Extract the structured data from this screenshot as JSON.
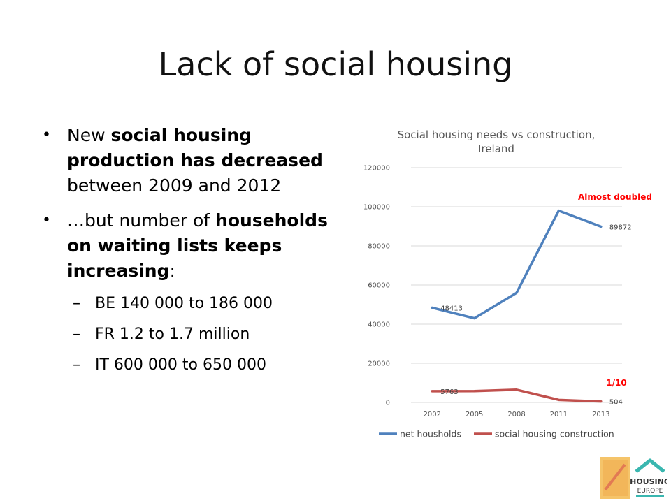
{
  "slide": {
    "title": "Lack of social housing",
    "bullets": [
      {
        "segments": [
          {
            "text": "New ",
            "bold": false
          },
          {
            "text": "social housing production has decreased",
            "bold": true
          },
          {
            "text": " between 2009 and 2012",
            "bold": false
          }
        ]
      },
      {
        "segments": [
          {
            "text": "…but number of ",
            "bold": false
          },
          {
            "text": "households on waiting lists keeps increasing",
            "bold": true
          },
          {
            "text": ":",
            "bold": false
          }
        ]
      }
    ],
    "sub_bullets": [
      "BE 140 000 to 186 000",
      "FR 1.2 to 1.7 million",
      "IT 600 000 to 650 000"
    ]
  },
  "chart_data": {
    "type": "line",
    "title": "Social housing needs vs construction, Ireland",
    "title_lines": [
      "Social housing needs vs construction,",
      "Ireland"
    ],
    "x": [
      "2002",
      "2005",
      "2008",
      "2011",
      "2013"
    ],
    "series": [
      {
        "name": "net housholds",
        "color": "#4f81bd",
        "values": [
          48413,
          43000,
          56000,
          98000,
          89872
        ]
      },
      {
        "name": "social housing construction",
        "color": "#c0504d",
        "values": [
          5763,
          5800,
          6500,
          1300,
          504
        ]
      }
    ],
    "data_labels": [
      {
        "series": 0,
        "index": 0,
        "text": "48413"
      },
      {
        "series": 0,
        "index": 4,
        "text": "89872"
      },
      {
        "series": 1,
        "index": 0,
        "text": "5763"
      },
      {
        "series": 1,
        "index": 4,
        "text": "504"
      }
    ],
    "y_ticks": [
      "0",
      "20000",
      "40000",
      "60000",
      "80000",
      "100000",
      "120000"
    ],
    "ylim": [
      0,
      120000
    ],
    "grid": true,
    "legend": "bottom",
    "annotations": [
      {
        "text": "Almost doubled",
        "color": "#ff0000"
      },
      {
        "text": "1/10",
        "color": "#ff0000"
      }
    ]
  },
  "logo": {
    "text_line1": "HOUSING",
    "text_line2": "EUROPE",
    "book_color": "#f5c46a",
    "house_color": "#3ab7b0"
  }
}
